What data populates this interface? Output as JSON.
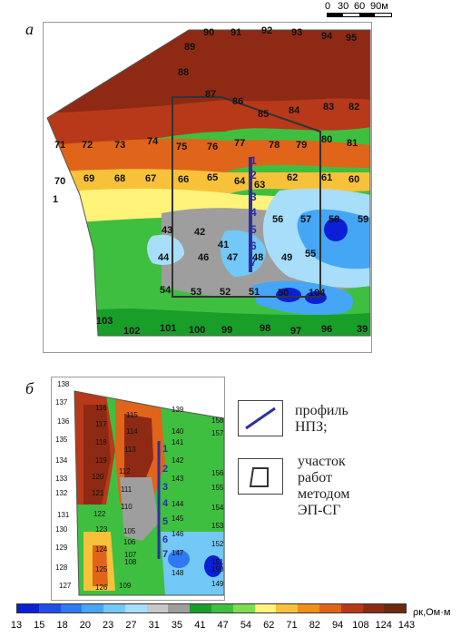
{
  "panels": {
    "a_label": "а",
    "b_label": "б"
  },
  "scale_bar": {
    "ticks": [
      "0",
      "30",
      "60",
      "90м"
    ]
  },
  "legend": {
    "profile_label_line1": "профиль",
    "profile_label_line2": "НПЗ;",
    "area_label_line1": "участок",
    "area_label_line2": "работ",
    "area_label_line3": "методом",
    "area_label_line4": "ЭП-СГ",
    "profile_color": "#2f2fa0",
    "area_color": "#333333"
  },
  "colorbar": {
    "unit": "ρк,Ом·м",
    "ticks": [
      "13",
      "15",
      "18",
      "20",
      "23",
      "27",
      "31",
      "35",
      "41",
      "47",
      "54",
      "62",
      "71",
      "82",
      "94",
      "108",
      "124",
      "143"
    ],
    "colors": [
      "#0a1fd6",
      "#1f4fe8",
      "#2f7af2",
      "#45a6f5",
      "#72c8f7",
      "#a8defa",
      "#c8c8c8",
      "#9e9e9e",
      "#1a9e2a",
      "#3fbf3f",
      "#7fdc4f",
      "#fff37a",
      "#f7c23a",
      "#f28e1c",
      "#e0641a",
      "#b8391a",
      "#8e2a14",
      "#6b2a0c"
    ]
  },
  "map_a": {
    "station_numbers": [
      "90",
      "91",
      "92",
      "93",
      "94",
      "95",
      "89",
      "88",
      "87",
      "86",
      "85",
      "84",
      "83",
      "82",
      "71",
      "72",
      "73",
      "74",
      "75",
      "76",
      "77",
      "78",
      "79",
      "80",
      "81",
      "70",
      "69",
      "68",
      "67",
      "66",
      "65",
      "64",
      "63",
      "62",
      "61",
      "60",
      "1",
      "43",
      "42",
      "56",
      "57",
      "58",
      "59",
      "44",
      "41",
      "46",
      "47",
      "48",
      "49",
      "55",
      "54",
      "53",
      "52",
      "51",
      "50",
      "104",
      "103",
      "102",
      "101",
      "100",
      "99",
      "98",
      "97",
      "96",
      "39"
    ],
    "profile_numbers": [
      "1",
      "2",
      "3",
      "4",
      "5",
      "6",
      "7"
    ]
  },
  "map_b": {
    "station_numbers": [
      "138",
      "137",
      "136",
      "135",
      "134",
      "133",
      "132",
      "131",
      "130",
      "129",
      "128",
      "127",
      "116",
      "115",
      "117",
      "114",
      "118",
      "113",
      "119",
      "112",
      "120",
      "111",
      "121",
      "110",
      "122",
      "123",
      "105",
      "106",
      "124",
      "107",
      "125",
      "108",
      "126",
      "109",
      "139",
      "140",
      "141",
      "142",
      "143",
      "144",
      "145",
      "146",
      "147",
      "148",
      "158",
      "157",
      "156",
      "155",
      "154",
      "153",
      "152",
      "151",
      "150",
      "149"
    ],
    "profile_numbers": [
      "1",
      "2",
      "3",
      "4",
      "5",
      "6",
      "7"
    ]
  }
}
